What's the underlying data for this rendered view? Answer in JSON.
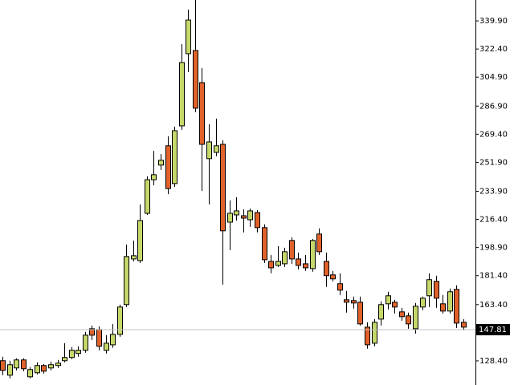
{
  "chart_data": {
    "type": "candlestick",
    "up_color": "#c5d96b",
    "down_color": "#e0622a",
    "ylim": [
      113.4,
      352.9
    ],
    "yticks": [
      {
        "value": 128.4,
        "label": "128.40"
      },
      {
        "value": 163.4,
        "label": "163.40"
      },
      {
        "value": 181.4,
        "label": "181.40"
      },
      {
        "value": 198.9,
        "label": "198.90"
      },
      {
        "value": 216.4,
        "label": "216.40"
      },
      {
        "value": 233.9,
        "label": "233.90"
      },
      {
        "value": 251.9,
        "label": "251.90"
      },
      {
        "value": 269.4,
        "label": "269.40"
      },
      {
        "value": 286.9,
        "label": "286.90"
      },
      {
        "value": 304.9,
        "label": "304.90"
      },
      {
        "value": 322.4,
        "label": "322.40"
      },
      {
        "value": 339.9,
        "label": "339.90"
      }
    ],
    "current_price": {
      "value": 147.81,
      "label": "147.81"
    },
    "open": [
      128.5,
      119.5,
      124.0,
      129.0,
      118.5,
      121.0,
      125.5,
      124.0,
      125.5,
      128.5,
      130.5,
      133.0,
      135.0,
      148.4,
      147.9,
      135.0,
      138.4,
      144.9,
      163.4,
      191.8,
      190.8,
      220.2,
      241.1,
      250.2,
      262.2,
      238.7,
      274.6,
      319.5,
      321.5,
      301.5,
      254.2,
      258.1,
      263.1,
      214.7,
      219.2,
      218.7,
      216.2,
      220.7,
      211.3,
      190.3,
      187.8,
      188.8,
      203.3,
      191.8,
      188.8,
      185.8,
      207.3,
      190.3,
      181.9,
      176.4,
      166.4,
      165.9,
      164.9,
      149.4,
      139.4,
      154.4,
      163.9,
      164.9,
      158.9,
      156.4,
      148.4,
      161.9,
      168.9,
      177.9,
      163.9,
      159.4,
      172.9,
      152.4
    ],
    "high": [
      131.0,
      128.5,
      130.0,
      130.0,
      124.5,
      127.5,
      126.5,
      128.0,
      129.0,
      139.4,
      137.0,
      137.5,
      146.4,
      150.4,
      149.9,
      144.4,
      151.4,
      163.4,
      200.8,
      203.3,
      225.7,
      243.2,
      259.1,
      257.1,
      268.1,
      274.1,
      325.5,
      346.9,
      353.5,
      310.5,
      275.6,
      279.1,
      265.6,
      228.2,
      230.2,
      222.7,
      223.2,
      222.2,
      213.3,
      194.3,
      199.8,
      198.8,
      205.3,
      195.8,
      194.3,
      204.3,
      210.8,
      195.8,
      184.4,
      182.9,
      171.9,
      168.4,
      168.4,
      152.4,
      154.4,
      165.4,
      171.4,
      166.4,
      161.4,
      158.4,
      164.4,
      168.4,
      182.9,
      181.4,
      169.4,
      173.4,
      175.4,
      154.4
    ],
    "low": [
      119.5,
      117.5,
      122.5,
      122.0,
      117.5,
      120.0,
      120.5,
      122.5,
      124.0,
      127.5,
      129.5,
      131.0,
      133.5,
      141.4,
      135.0,
      133.0,
      136.5,
      143.4,
      161.9,
      190.3,
      189.3,
      219.2,
      237.6,
      247.2,
      232.1,
      236.6,
      272.1,
      308.0,
      283.1,
      234.1,
      225.7,
      255.7,
      175.9,
      197.3,
      215.7,
      208.3,
      211.8,
      208.3,
      189.3,
      182.9,
      186.8,
      186.8,
      188.8,
      185.3,
      184.4,
      183.9,
      194.3,
      174.4,
      177.9,
      169.4,
      158.4,
      160.9,
      150.4,
      136.0,
      137.5,
      150.4,
      160.4,
      157.9,
      153.4,
      148.4,
      145.4,
      159.9,
      161.9,
      161.4,
      157.9,
      157.9,
      148.9,
      147.4
    ],
    "close": [
      122.5,
      126.0,
      129.0,
      123.5,
      123.0,
      125.5,
      122.0,
      126.0,
      127.0,
      130.5,
      135.0,
      135.0,
      144.4,
      144.4,
      137.5,
      139.4,
      144.9,
      161.9,
      193.3,
      193.8,
      215.7,
      241.1,
      244.2,
      253.2,
      235.6,
      271.6,
      314.0,
      340.4,
      285.6,
      263.1,
      264.6,
      262.2,
      209.3,
      220.2,
      221.7,
      217.2,
      221.7,
      211.3,
      191.3,
      186.3,
      190.3,
      196.3,
      191.8,
      187.8,
      186.3,
      203.3,
      196.3,
      181.4,
      179.4,
      172.4,
      164.9,
      164.4,
      151.4,
      138.4,
      152.4,
      163.4,
      168.9,
      161.9,
      155.9,
      151.4,
      162.4,
      167.4,
      178.9,
      167.4,
      159.4,
      171.4,
      151.9,
      149.4
    ]
  }
}
